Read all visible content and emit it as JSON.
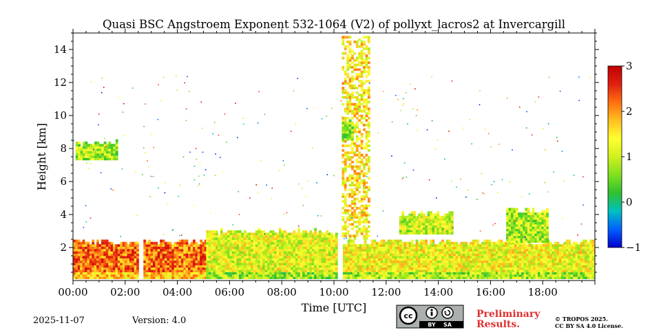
{
  "chart_data": {
    "type": "heatmap",
    "title": "Quasi BSC Angstroem Exponent 532-1064 (V2) of pollyxt_lacros2 at Invercargill",
    "xlabel": "Time [UTC]",
    "ylabel": "Height [km]",
    "xlim_hours": [
      0,
      20
    ],
    "ylim_km": [
      0,
      15
    ],
    "x_ticks": [
      {
        "value": 0,
        "label": "00:00"
      },
      {
        "value": 2,
        "label": "02:00"
      },
      {
        "value": 4,
        "label": "04:00"
      },
      {
        "value": 6,
        "label": "06:00"
      },
      {
        "value": 8,
        "label": "08:00"
      },
      {
        "value": 10,
        "label": "10:00"
      },
      {
        "value": 12,
        "label": "12:00"
      },
      {
        "value": 14,
        "label": "14:00"
      },
      {
        "value": 16,
        "label": "16:00"
      },
      {
        "value": 18,
        "label": "18:00"
      }
    ],
    "y_ticks": [
      {
        "value": 2,
        "label": "2"
      },
      {
        "value": 4,
        "label": "4"
      },
      {
        "value": 6,
        "label": "6"
      },
      {
        "value": 8,
        "label": "8"
      },
      {
        "value": 10,
        "label": "10"
      },
      {
        "value": 12,
        "label": "12"
      },
      {
        "value": 14,
        "label": "14"
      }
    ],
    "colorbar": {
      "min": -1,
      "max": 3,
      "ticks": [
        {
          "value": 3,
          "label": "3"
        },
        {
          "value": 2,
          "label": "2"
        },
        {
          "value": 1,
          "label": "1"
        },
        {
          "value": 0,
          "label": "0"
        },
        {
          "value": -1,
          "label": "−1"
        }
      ],
      "colors": [
        "#0000cc",
        "#0060ff",
        "#00c0c0",
        "#30c030",
        "#80e020",
        "#d0f020",
        "#ffff30",
        "#ffc020",
        "#ff7010",
        "#e02010",
        "#c00000"
      ]
    },
    "data_gaps_hours": [
      [
        2.52,
        2.62
      ],
      [
        10.12,
        10.25
      ]
    ],
    "regions": [
      {
        "name": "boundary-layer-night",
        "t0": 0.0,
        "t1": 5.1,
        "h0": 0.1,
        "h1": 2.3,
        "value": 2.2
      },
      {
        "name": "boundary-layer-day",
        "t0": 5.1,
        "t1": 10.1,
        "h0": 0.1,
        "h1": 2.9,
        "value": 1.2
      },
      {
        "name": "boundary-layer-afternoon",
        "t0": 10.25,
        "t1": 20.0,
        "h0": 0.1,
        "h1": 2.3,
        "value": 1.3
      },
      {
        "name": "tall-column-1030",
        "t0": 10.3,
        "t1": 11.3,
        "h0": 2.5,
        "h1": 14.8,
        "value": 1.5
      },
      {
        "name": "cloud-layer-1300",
        "t0": 12.5,
        "t1": 14.5,
        "h0": 2.8,
        "h1": 4.0,
        "value": 1.0
      },
      {
        "name": "elevated-layer-1700",
        "t0": 16.6,
        "t1": 18.2,
        "h0": 2.3,
        "h1": 4.2,
        "value": 0.9
      },
      {
        "name": "aerosol-patch-0100",
        "t0": 0.1,
        "t1": 1.7,
        "h0": 7.3,
        "h1": 8.3,
        "value": 0.8
      },
      {
        "name": "green-patch-1040",
        "t0": 10.3,
        "t1": 10.7,
        "h0": 8.5,
        "h1": 9.5,
        "value": 0.6
      }
    ]
  },
  "footer": {
    "date": "2025-11-07",
    "version": "Version: 4.0",
    "preliminary_line1": "Preliminary",
    "preliminary_line2": "Results.",
    "copyright_line1": "© TROPOS 2025.",
    "copyright_line2": "CC BY SA 4.0 License.",
    "cc_badge": {
      "by": "BY",
      "sa": "SA",
      "cc": "cc"
    }
  }
}
